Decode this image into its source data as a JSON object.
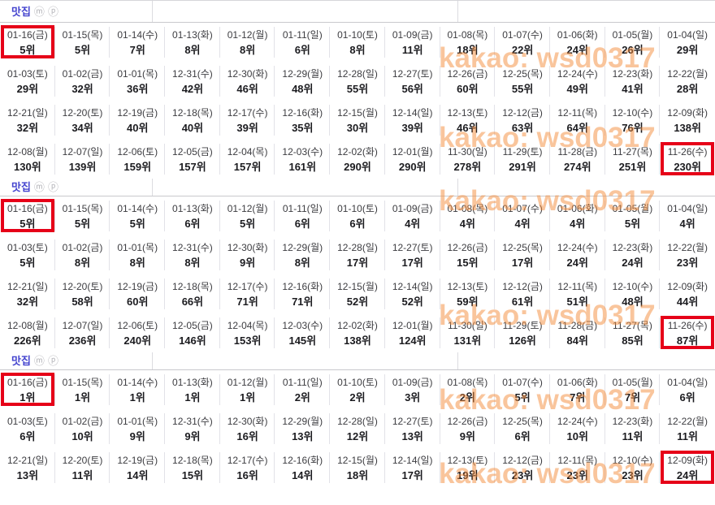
{
  "colors": {
    "highlight": "#e60018",
    "keyword": "#4545cf",
    "watermark": "#f58c3c"
  },
  "watermark": {
    "text": "kakao: wsd0317"
  },
  "sections": [
    {
      "title": "맛집",
      "badges": [
        "ⓜ",
        "ⓟ"
      ],
      "rows": [
        [
          {
            "d": "01-16(금)",
            "r": "5위",
            "h": true
          },
          {
            "d": "01-15(목)",
            "r": "5위"
          },
          {
            "d": "01-14(수)",
            "r": "7위"
          },
          {
            "d": "01-13(화)",
            "r": "8위"
          },
          {
            "d": "01-12(월)",
            "r": "8위"
          },
          {
            "d": "01-11(일)",
            "r": "6위"
          },
          {
            "d": "01-10(토)",
            "r": "8위"
          },
          {
            "d": "01-09(금)",
            "r": "11위"
          },
          {
            "d": "01-08(목)",
            "r": "18위"
          },
          {
            "d": "01-07(수)",
            "r": "22위"
          },
          {
            "d": "01-06(화)",
            "r": "24위"
          },
          {
            "d": "01-05(월)",
            "r": "26위"
          },
          {
            "d": "01-04(일)",
            "r": "29위"
          }
        ],
        [
          {
            "d": "01-03(토)",
            "r": "29위"
          },
          {
            "d": "01-02(금)",
            "r": "32위"
          },
          {
            "d": "01-01(목)",
            "r": "36위"
          },
          {
            "d": "12-31(수)",
            "r": "42위"
          },
          {
            "d": "12-30(화)",
            "r": "46위"
          },
          {
            "d": "12-29(월)",
            "r": "48위"
          },
          {
            "d": "12-28(일)",
            "r": "55위"
          },
          {
            "d": "12-27(토)",
            "r": "56위"
          },
          {
            "d": "12-26(금)",
            "r": "60위"
          },
          {
            "d": "12-25(목)",
            "r": "55위"
          },
          {
            "d": "12-24(수)",
            "r": "49위"
          },
          {
            "d": "12-23(화)",
            "r": "41위"
          },
          {
            "d": "12-22(월)",
            "r": "28위"
          }
        ],
        [
          {
            "d": "12-21(일)",
            "r": "32위"
          },
          {
            "d": "12-20(토)",
            "r": "34위"
          },
          {
            "d": "12-19(금)",
            "r": "40위"
          },
          {
            "d": "12-18(목)",
            "r": "40위"
          },
          {
            "d": "12-17(수)",
            "r": "39위"
          },
          {
            "d": "12-16(화)",
            "r": "35위"
          },
          {
            "d": "12-15(월)",
            "r": "30위"
          },
          {
            "d": "12-14(일)",
            "r": "39위"
          },
          {
            "d": "12-13(토)",
            "r": "46위"
          },
          {
            "d": "12-12(금)",
            "r": "63위"
          },
          {
            "d": "12-11(목)",
            "r": "64위"
          },
          {
            "d": "12-10(수)",
            "r": "76위"
          },
          {
            "d": "12-09(화)",
            "r": "138위"
          }
        ],
        [
          {
            "d": "12-08(월)",
            "r": "130위"
          },
          {
            "d": "12-07(일)",
            "r": "139위"
          },
          {
            "d": "12-06(토)",
            "r": "159위"
          },
          {
            "d": "12-05(금)",
            "r": "157위"
          },
          {
            "d": "12-04(목)",
            "r": "157위"
          },
          {
            "d": "12-03(수)",
            "r": "161위"
          },
          {
            "d": "12-02(화)",
            "r": "290위"
          },
          {
            "d": "12-01(월)",
            "r": "290위"
          },
          {
            "d": "11-30(일)",
            "r": "278위"
          },
          {
            "d": "11-29(토)",
            "r": "291위"
          },
          {
            "d": "11-28(금)",
            "r": "274위"
          },
          {
            "d": "11-27(목)",
            "r": "251위"
          },
          {
            "d": "11-26(수)",
            "r": "230위",
            "h": true
          }
        ]
      ]
    },
    {
      "title": "맛집",
      "badges": [
        "ⓜ",
        "ⓟ"
      ],
      "rows": [
        [
          {
            "d": "01-16(금)",
            "r": "5위",
            "h": true
          },
          {
            "d": "01-15(목)",
            "r": "5위"
          },
          {
            "d": "01-14(수)",
            "r": "5위"
          },
          {
            "d": "01-13(화)",
            "r": "6위"
          },
          {
            "d": "01-12(월)",
            "r": "5위"
          },
          {
            "d": "01-11(일)",
            "r": "6위"
          },
          {
            "d": "01-10(토)",
            "r": "6위"
          },
          {
            "d": "01-09(금)",
            "r": "4위"
          },
          {
            "d": "01-08(목)",
            "r": "4위"
          },
          {
            "d": "01-07(수)",
            "r": "4위"
          },
          {
            "d": "01-06(화)",
            "r": "4위"
          },
          {
            "d": "01-05(월)",
            "r": "5위"
          },
          {
            "d": "01-04(일)",
            "r": "4위"
          }
        ],
        [
          {
            "d": "01-03(토)",
            "r": "5위"
          },
          {
            "d": "01-02(금)",
            "r": "8위"
          },
          {
            "d": "01-01(목)",
            "r": "8위"
          },
          {
            "d": "12-31(수)",
            "r": "8위"
          },
          {
            "d": "12-30(화)",
            "r": "9위"
          },
          {
            "d": "12-29(월)",
            "r": "8위"
          },
          {
            "d": "12-28(일)",
            "r": "17위"
          },
          {
            "d": "12-27(토)",
            "r": "17위"
          },
          {
            "d": "12-26(금)",
            "r": "15위"
          },
          {
            "d": "12-25(목)",
            "r": "17위"
          },
          {
            "d": "12-24(수)",
            "r": "24위"
          },
          {
            "d": "12-23(화)",
            "r": "24위"
          },
          {
            "d": "12-22(월)",
            "r": "23위"
          }
        ],
        [
          {
            "d": "12-21(일)",
            "r": "32위"
          },
          {
            "d": "12-20(토)",
            "r": "58위"
          },
          {
            "d": "12-19(금)",
            "r": "60위"
          },
          {
            "d": "12-18(목)",
            "r": "66위"
          },
          {
            "d": "12-17(수)",
            "r": "71위"
          },
          {
            "d": "12-16(화)",
            "r": "71위"
          },
          {
            "d": "12-15(월)",
            "r": "52위"
          },
          {
            "d": "12-14(일)",
            "r": "52위"
          },
          {
            "d": "12-13(토)",
            "r": "59위"
          },
          {
            "d": "12-12(금)",
            "r": "61위"
          },
          {
            "d": "12-11(목)",
            "r": "51위"
          },
          {
            "d": "12-10(수)",
            "r": "48위"
          },
          {
            "d": "12-09(화)",
            "r": "44위"
          }
        ],
        [
          {
            "d": "12-08(월)",
            "r": "226위"
          },
          {
            "d": "12-07(일)",
            "r": "236위"
          },
          {
            "d": "12-06(토)",
            "r": "240위"
          },
          {
            "d": "12-05(금)",
            "r": "146위"
          },
          {
            "d": "12-04(목)",
            "r": "153위"
          },
          {
            "d": "12-03(수)",
            "r": "145위"
          },
          {
            "d": "12-02(화)",
            "r": "138위"
          },
          {
            "d": "12-01(월)",
            "r": "124위"
          },
          {
            "d": "11-30(일)",
            "r": "131위"
          },
          {
            "d": "11-29(토)",
            "r": "126위"
          },
          {
            "d": "11-28(금)",
            "r": "84위"
          },
          {
            "d": "11-27(목)",
            "r": "85위"
          },
          {
            "d": "11-26(수)",
            "r": "87위",
            "h": true
          }
        ]
      ]
    },
    {
      "title": "맛집",
      "badges": [
        "ⓜ",
        "ⓟ"
      ],
      "rows": [
        [
          {
            "d": "01-16(금)",
            "r": "1위",
            "h": true
          },
          {
            "d": "01-15(목)",
            "r": "1위"
          },
          {
            "d": "01-14(수)",
            "r": "1위"
          },
          {
            "d": "01-13(화)",
            "r": "1위"
          },
          {
            "d": "01-12(월)",
            "r": "1위"
          },
          {
            "d": "01-11(일)",
            "r": "2위"
          },
          {
            "d": "01-10(토)",
            "r": "2위"
          },
          {
            "d": "01-09(금)",
            "r": "3위"
          },
          {
            "d": "01-08(목)",
            "r": "2위"
          },
          {
            "d": "01-07(수)",
            "r": "5위"
          },
          {
            "d": "01-06(화)",
            "r": "7위"
          },
          {
            "d": "01-05(월)",
            "r": "7위"
          },
          {
            "d": "01-04(일)",
            "r": "6위"
          }
        ],
        [
          {
            "d": "01-03(토)",
            "r": "6위"
          },
          {
            "d": "01-02(금)",
            "r": "10위"
          },
          {
            "d": "01-01(목)",
            "r": "9위"
          },
          {
            "d": "12-31(수)",
            "r": "9위"
          },
          {
            "d": "12-30(화)",
            "r": "16위"
          },
          {
            "d": "12-29(월)",
            "r": "13위"
          },
          {
            "d": "12-28(일)",
            "r": "12위"
          },
          {
            "d": "12-27(토)",
            "r": "13위"
          },
          {
            "d": "12-26(금)",
            "r": "9위"
          },
          {
            "d": "12-25(목)",
            "r": "6위"
          },
          {
            "d": "12-24(수)",
            "r": "10위"
          },
          {
            "d": "12-23(화)",
            "r": "11위"
          },
          {
            "d": "12-22(월)",
            "r": "11위"
          }
        ],
        [
          {
            "d": "12-21(일)",
            "r": "13위"
          },
          {
            "d": "12-20(토)",
            "r": "11위"
          },
          {
            "d": "12-19(금)",
            "r": "14위"
          },
          {
            "d": "12-18(목)",
            "r": "15위"
          },
          {
            "d": "12-17(수)",
            "r": "16위"
          },
          {
            "d": "12-16(화)",
            "r": "14위"
          },
          {
            "d": "12-15(월)",
            "r": "18위"
          },
          {
            "d": "12-14(일)",
            "r": "17위"
          },
          {
            "d": "12-13(토)",
            "r": "19위"
          },
          {
            "d": "12-12(금)",
            "r": "23위"
          },
          {
            "d": "12-11(목)",
            "r": "23위"
          },
          {
            "d": "12-10(수)",
            "r": "23위"
          },
          {
            "d": "12-09(화)",
            "r": "24위",
            "h": true
          }
        ]
      ]
    }
  ]
}
